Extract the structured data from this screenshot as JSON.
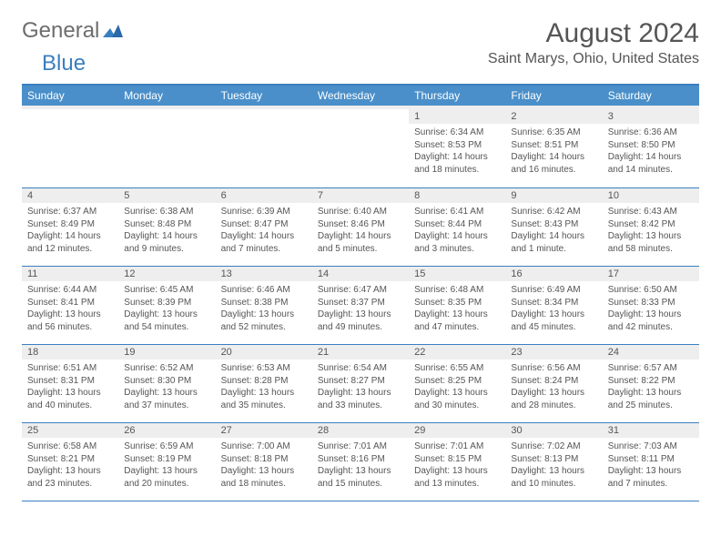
{
  "logo": {
    "word1": "General",
    "word2": "Blue"
  },
  "title": "August 2024",
  "location": "Saint Marys, Ohio, United States",
  "colors": {
    "accent": "#4a8fc9",
    "border": "#3a7fbf",
    "text": "#555555",
    "daynum_bg": "#eeeeee"
  },
  "weekdays": [
    "Sunday",
    "Monday",
    "Tuesday",
    "Wednesday",
    "Thursday",
    "Friday",
    "Saturday"
  ],
  "blank_leading": 4,
  "days": [
    {
      "n": 1,
      "sunrise": "6:34 AM",
      "sunset": "8:53 PM",
      "daylight": "14 hours and 18 minutes."
    },
    {
      "n": 2,
      "sunrise": "6:35 AM",
      "sunset": "8:51 PM",
      "daylight": "14 hours and 16 minutes."
    },
    {
      "n": 3,
      "sunrise": "6:36 AM",
      "sunset": "8:50 PM",
      "daylight": "14 hours and 14 minutes."
    },
    {
      "n": 4,
      "sunrise": "6:37 AM",
      "sunset": "8:49 PM",
      "daylight": "14 hours and 12 minutes."
    },
    {
      "n": 5,
      "sunrise": "6:38 AM",
      "sunset": "8:48 PM",
      "daylight": "14 hours and 9 minutes."
    },
    {
      "n": 6,
      "sunrise": "6:39 AM",
      "sunset": "8:47 PM",
      "daylight": "14 hours and 7 minutes."
    },
    {
      "n": 7,
      "sunrise": "6:40 AM",
      "sunset": "8:46 PM",
      "daylight": "14 hours and 5 minutes."
    },
    {
      "n": 8,
      "sunrise": "6:41 AM",
      "sunset": "8:44 PM",
      "daylight": "14 hours and 3 minutes."
    },
    {
      "n": 9,
      "sunrise": "6:42 AM",
      "sunset": "8:43 PM",
      "daylight": "14 hours and 1 minute."
    },
    {
      "n": 10,
      "sunrise": "6:43 AM",
      "sunset": "8:42 PM",
      "daylight": "13 hours and 58 minutes."
    },
    {
      "n": 11,
      "sunrise": "6:44 AM",
      "sunset": "8:41 PM",
      "daylight": "13 hours and 56 minutes."
    },
    {
      "n": 12,
      "sunrise": "6:45 AM",
      "sunset": "8:39 PM",
      "daylight": "13 hours and 54 minutes."
    },
    {
      "n": 13,
      "sunrise": "6:46 AM",
      "sunset": "8:38 PM",
      "daylight": "13 hours and 52 minutes."
    },
    {
      "n": 14,
      "sunrise": "6:47 AM",
      "sunset": "8:37 PM",
      "daylight": "13 hours and 49 minutes."
    },
    {
      "n": 15,
      "sunrise": "6:48 AM",
      "sunset": "8:35 PM",
      "daylight": "13 hours and 47 minutes."
    },
    {
      "n": 16,
      "sunrise": "6:49 AM",
      "sunset": "8:34 PM",
      "daylight": "13 hours and 45 minutes."
    },
    {
      "n": 17,
      "sunrise": "6:50 AM",
      "sunset": "8:33 PM",
      "daylight": "13 hours and 42 minutes."
    },
    {
      "n": 18,
      "sunrise": "6:51 AM",
      "sunset": "8:31 PM",
      "daylight": "13 hours and 40 minutes."
    },
    {
      "n": 19,
      "sunrise": "6:52 AM",
      "sunset": "8:30 PM",
      "daylight": "13 hours and 37 minutes."
    },
    {
      "n": 20,
      "sunrise": "6:53 AM",
      "sunset": "8:28 PM",
      "daylight": "13 hours and 35 minutes."
    },
    {
      "n": 21,
      "sunrise": "6:54 AM",
      "sunset": "8:27 PM",
      "daylight": "13 hours and 33 minutes."
    },
    {
      "n": 22,
      "sunrise": "6:55 AM",
      "sunset": "8:25 PM",
      "daylight": "13 hours and 30 minutes."
    },
    {
      "n": 23,
      "sunrise": "6:56 AM",
      "sunset": "8:24 PM",
      "daylight": "13 hours and 28 minutes."
    },
    {
      "n": 24,
      "sunrise": "6:57 AM",
      "sunset": "8:22 PM",
      "daylight": "13 hours and 25 minutes."
    },
    {
      "n": 25,
      "sunrise": "6:58 AM",
      "sunset": "8:21 PM",
      "daylight": "13 hours and 23 minutes."
    },
    {
      "n": 26,
      "sunrise": "6:59 AM",
      "sunset": "8:19 PM",
      "daylight": "13 hours and 20 minutes."
    },
    {
      "n": 27,
      "sunrise": "7:00 AM",
      "sunset": "8:18 PM",
      "daylight": "13 hours and 18 minutes."
    },
    {
      "n": 28,
      "sunrise": "7:01 AM",
      "sunset": "8:16 PM",
      "daylight": "13 hours and 15 minutes."
    },
    {
      "n": 29,
      "sunrise": "7:01 AM",
      "sunset": "8:15 PM",
      "daylight": "13 hours and 13 minutes."
    },
    {
      "n": 30,
      "sunrise": "7:02 AM",
      "sunset": "8:13 PM",
      "daylight": "13 hours and 10 minutes."
    },
    {
      "n": 31,
      "sunrise": "7:03 AM",
      "sunset": "8:11 PM",
      "daylight": "13 hours and 7 minutes."
    }
  ],
  "labels": {
    "sunrise": "Sunrise:",
    "sunset": "Sunset:",
    "daylight": "Daylight:"
  }
}
